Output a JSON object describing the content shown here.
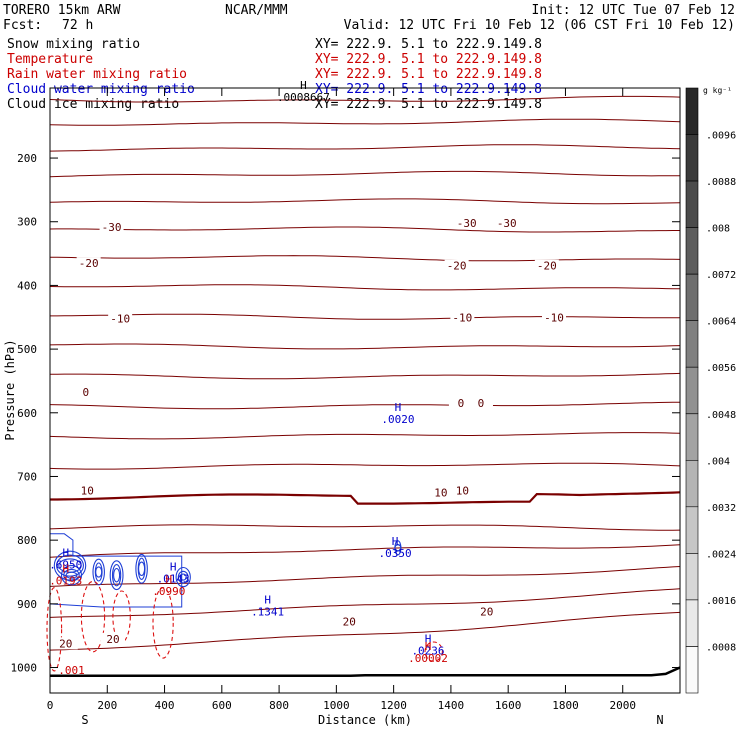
{
  "header": {
    "model": "TORERO  15km ARW",
    "org": "NCAR/MMM",
    "init": "Init: 12 UTC Tue 07 Feb 12",
    "fcst_label": "Fcst:",
    "fcst_value": "72 h",
    "valid": "Valid: 12 UTC Fri 10 Feb 12 (06 CST Fri 10 Feb 12)"
  },
  "legend": [
    {
      "name": "Snow mixing ratio",
      "xy": "XY= 222.9.  5.1 to 222.9.149.8",
      "color": "#000000"
    },
    {
      "name": "Temperature",
      "xy": "XY= 222.9.  5.1 to 222.9.149.8",
      "color": "#cc0000"
    },
    {
      "name": "Rain water mixing ratio",
      "xy": "XY= 222.9.  5.1 to 222.9.149.8",
      "color": "#cc0000"
    },
    {
      "name": "Cloud water mixing ratio",
      "xy": "XY= 222.9.  5.1 to 222.9.149.8",
      "color": "#0000cc"
    },
    {
      "name": "Cloud ice mixing ratio",
      "xy": "XY= 222.9.  5.1 to 222.9.149.8",
      "color": "#000000"
    }
  ],
  "chart_data": {
    "type": "contour-cross-section",
    "xlabel": "Distance (km)",
    "ylabel": "Pressure (hPa)",
    "xlim": [
      0,
      2200
    ],
    "ylim": [
      1040,
      90
    ],
    "x_ticks": [
      0,
      200,
      400,
      600,
      800,
      1000,
      1200,
      1400,
      1600,
      1800,
      2000
    ],
    "y_ticks": [
      200,
      300,
      400,
      500,
      600,
      700,
      800,
      900,
      1000
    ],
    "endpoints": {
      "left": "S",
      "right": "N"
    },
    "isotherm_levels": [
      -70,
      -65,
      -60,
      -55,
      -50,
      -45,
      -40,
      -35,
      -30,
      -25,
      -20,
      -15,
      -10,
      -5,
      0,
      5,
      10,
      15,
      20,
      25
    ],
    "isotherm_labels": [
      {
        "text": "-30",
        "x": 215,
        "p": 308
      },
      {
        "text": "-30",
        "x": 1455,
        "p": 302
      },
      {
        "text": "-30",
        "x": 1595,
        "p": 302
      },
      {
        "text": "-20",
        "x": 135,
        "p": 365
      },
      {
        "text": "-20",
        "x": 1420,
        "p": 369
      },
      {
        "text": "-20",
        "x": 1735,
        "p": 369
      },
      {
        "text": "-10",
        "x": 245,
        "p": 452
      },
      {
        "text": "-10",
        "x": 1440,
        "p": 450
      },
      {
        "text": "-10",
        "x": 1760,
        "p": 450
      },
      {
        "text": "0",
        "x": 125,
        "p": 567
      },
      {
        "text": "0",
        "x": 1435,
        "p": 585
      },
      {
        "text": "0",
        "x": 1505,
        "p": 585
      },
      {
        "text": "10",
        "x": 130,
        "p": 722
      },
      {
        "text": "10",
        "x": 1365,
        "p": 725
      },
      {
        "text": "10",
        "x": 1440,
        "p": 722
      },
      {
        "text": "20",
        "x": 55,
        "p": 962
      },
      {
        "text": "20",
        "x": 220,
        "p": 955
      },
      {
        "text": "20",
        "x": 1045,
        "p": 928
      },
      {
        "text": "20",
        "x": 1525,
        "p": 912
      }
    ],
    "extrema": [
      {
        "text": "H",
        "value": ".0008667",
        "x": 885,
        "p": 104,
        "color": "#000000"
      },
      {
        "text": "H",
        "value": ".0020",
        "x": 1215,
        "p": 610,
        "color": "#0000cc"
      },
      {
        "text": "H",
        "value": ".0350",
        "x": 1205,
        "p": 820,
        "color": "#0000cc"
      },
      {
        "text": "H",
        "value": ".6950",
        "x": 55,
        "p": 838,
        "color": "#0000cc"
      },
      {
        "text": "H",
        "value": ".0193",
        "x": 55,
        "p": 863,
        "color": "#cc0000"
      },
      {
        "text": "H",
        "value": ".0143",
        "x": 430,
        "p": 860,
        "color": "#0000cc"
      },
      {
        "text": "H",
        "value": ".0990",
        "x": 415,
        "p": 880,
        "color": "#cc0000"
      },
      {
        "text": "H",
        "value": ".1341",
        "x": 760,
        "p": 912,
        "color": "#0000cc"
      },
      {
        "text": "H",
        "value": ".0236",
        "x": 1320,
        "p": 973,
        "color": "#0000cc"
      },
      {
        "text": "H",
        "value": ".00002",
        "x": 1320,
        "p": 985,
        "color": "#cc0000"
      },
      {
        "text": "",
        "value": ".001",
        "x": 75,
        "p": 1004,
        "color": "#cc0000"
      }
    ],
    "colorbar": {
      "unit": "g kg⁻¹",
      "levels": [
        ".0096",
        ".0088",
        ".008",
        ".0072",
        ".0064",
        ".0056",
        ".0048",
        ".004",
        ".0032",
        ".0024",
        ".0016",
        ".0008"
      ]
    }
  }
}
